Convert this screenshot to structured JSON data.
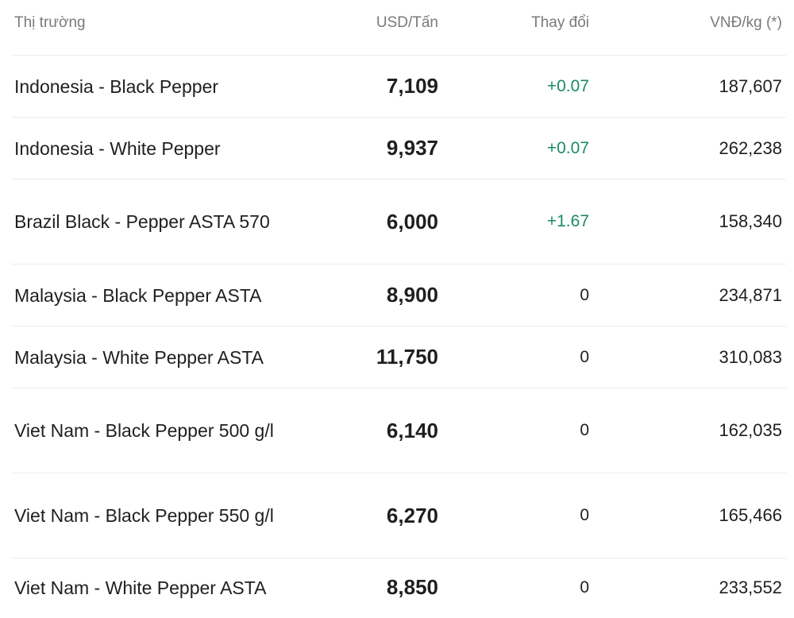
{
  "header": {
    "market": "Thị trường",
    "usd": "USD/Tấn",
    "change": "Thay đổi",
    "vnd": "VNĐ/kg (*)"
  },
  "rows": [
    {
      "market": "Indonesia - Black Pepper",
      "usd": "7,109",
      "change": "+0.07",
      "vnd": "187,607"
    },
    {
      "market": "Indonesia - White Pepper",
      "usd": "9,937",
      "change": "+0.07",
      "vnd": "262,238"
    },
    {
      "market": "Brazil Black - Pepper ASTA 570",
      "usd": "6,000",
      "change": "+1.67",
      "vnd": "158,340"
    },
    {
      "market": "Malaysia - Black Pepper ASTA",
      "usd": "8,900",
      "change": "0",
      "vnd": "234,871"
    },
    {
      "market": "Malaysia - White Pepper ASTA",
      "usd": "11,750",
      "change": "0",
      "vnd": "310,083"
    },
    {
      "market": "Viet Nam - Black Pepper 500 g/l",
      "usd": "6,140",
      "change": "0",
      "vnd": "162,035"
    },
    {
      "market": "Viet Nam - Black Pepper 550 g/l",
      "usd": "6,270",
      "change": "0",
      "vnd": "165,466"
    },
    {
      "market": "Viet Nam - White Pepper ASTA",
      "usd": "8,850",
      "change": "0",
      "vnd": "233,552"
    }
  ],
  "colors": {
    "positive_change": "#1a8a6a",
    "header_text": "#7a7a7a",
    "divider": "#ececec"
  }
}
